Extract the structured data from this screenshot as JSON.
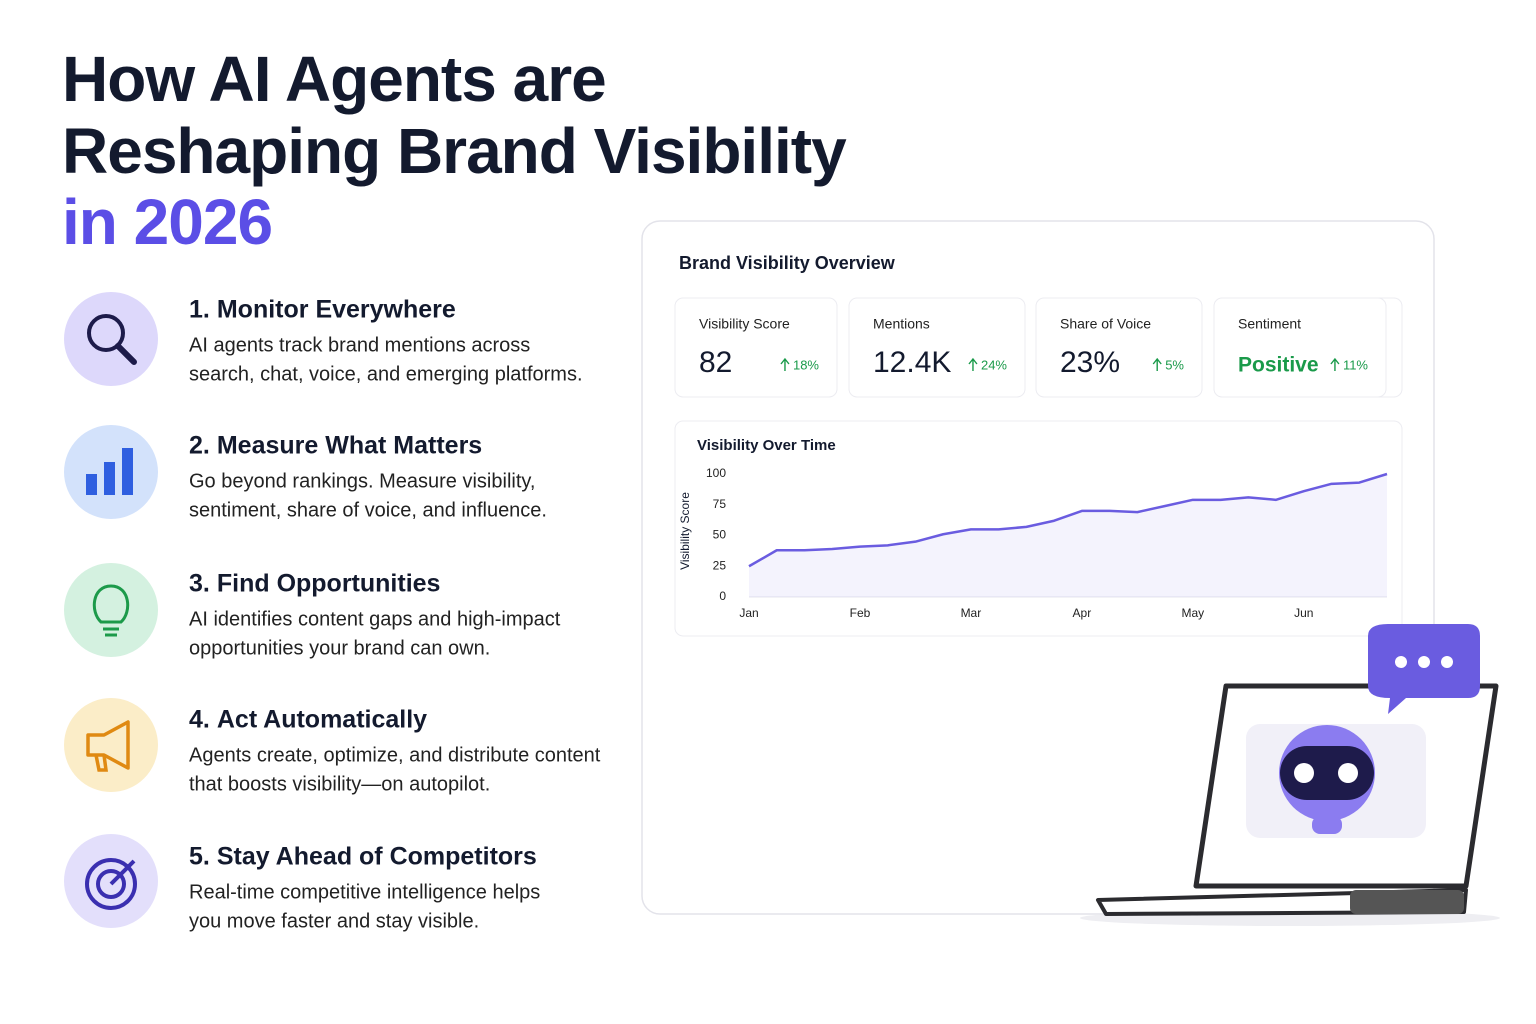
{
  "header": {
    "title_lines": [
      "How AI Agents are",
      "Reshaping Brand Visibility",
      "in 2026"
    ]
  },
  "features": [
    {
      "number": "1.",
      "title": "Monitor Everywhere",
      "desc": [
        "AI agents track brand mentions across",
        "search, chat, voice, and emerging platforms."
      ]
    },
    {
      "number": "2.",
      "title": "Measure What Matters",
      "desc": [
        "Go beyond rankings. Measure visibility,",
        "sentiment, share of voice, and influence."
      ]
    },
    {
      "number": "3.",
      "title": "Find Opportunities",
      "desc": [
        "AI identifies content gaps and high-impact",
        "opportunities your brand can own."
      ]
    },
    {
      "number": "4.",
      "title": "Act Automatically",
      "desc": [
        "Agents create, optimize, and distribute content",
        "that boosts visibility—on autopilot."
      ]
    },
    {
      "number": "5.",
      "title": "Stay Ahead of Competitors",
      "desc": [
        "Real-time competitive intelligence helps",
        "you move faster and stay visible."
      ]
    }
  ],
  "dashboard": {
    "title": "Brand Visibility Overview",
    "metrics": [
      {
        "label": "Visibility Score",
        "value": "82",
        "change": "18%"
      },
      {
        "label": "Mentions",
        "value": "12.4K",
        "change": "24%"
      },
      {
        "label": "Share of Voice",
        "value": "23%",
        "change": "5%"
      },
      {
        "label": "Sentiment",
        "value": "Positive",
        "change": "11%"
      }
    ]
  },
  "chart_data": {
    "type": "line",
    "title": "Visibility Over Time",
    "ylabel": "Visibility Score",
    "categories": [
      "Jan",
      null,
      null,
      null,
      "Feb",
      null,
      null,
      null,
      "Mar",
      null,
      null,
      null,
      "Apr",
      null,
      null,
      null,
      "May",
      null,
      null,
      null,
      "Jun",
      null,
      null,
      null
    ],
    "values": [
      25,
      38,
      38,
      39,
      41,
      42,
      45,
      51,
      55,
      55,
      57,
      62,
      70,
      70,
      69,
      74,
      79,
      79,
      81,
      79,
      86,
      92,
      93,
      100
    ],
    "color": "#6a5ce0",
    "ylim": [
      0,
      100
    ],
    "yticks": [
      0,
      25,
      50,
      75,
      100
    ],
    "area": true
  }
}
